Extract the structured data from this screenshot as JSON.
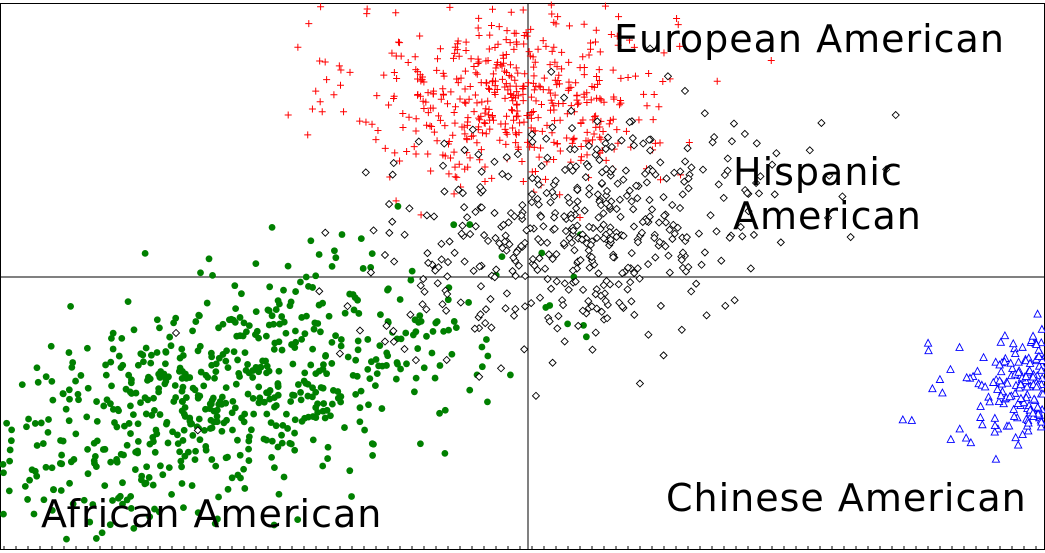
{
  "chart_data": {
    "type": "scatter",
    "title": "",
    "xlabel": "",
    "ylabel": "",
    "xlim": [
      -1.0,
      1.0
    ],
    "ylim": [
      -1.0,
      1.0
    ],
    "grid": false,
    "axes_through_origin": true,
    "series": [
      {
        "key": "european",
        "name": "European American",
        "marker": "plus",
        "color": "#ff0000",
        "n": 500,
        "center": [
          -0.03,
          0.67
        ],
        "spread": [
          0.17,
          0.17
        ],
        "correlation": 0.0
      },
      {
        "key": "hispanic",
        "name": "Hispanic American",
        "marker": "diamond",
        "color": "#000000",
        "n": 480,
        "center": [
          0.12,
          0.17
        ],
        "spread": [
          0.21,
          0.2
        ],
        "correlation": 0.25
      },
      {
        "key": "african",
        "name": "African American",
        "marker": "circle",
        "color": "#008000",
        "n": 650,
        "center": [
          -0.64,
          -0.43
        ],
        "spread": [
          0.26,
          0.24
        ],
        "correlation": 0.55
      },
      {
        "key": "chinese",
        "name": "Chinese American",
        "marker": "triangle",
        "color": "#0000ff",
        "n": 520,
        "center": [
          1.15,
          -0.42
        ],
        "spread": [
          0.11,
          0.11
        ],
        "correlation": 0.0
      }
    ]
  }
}
